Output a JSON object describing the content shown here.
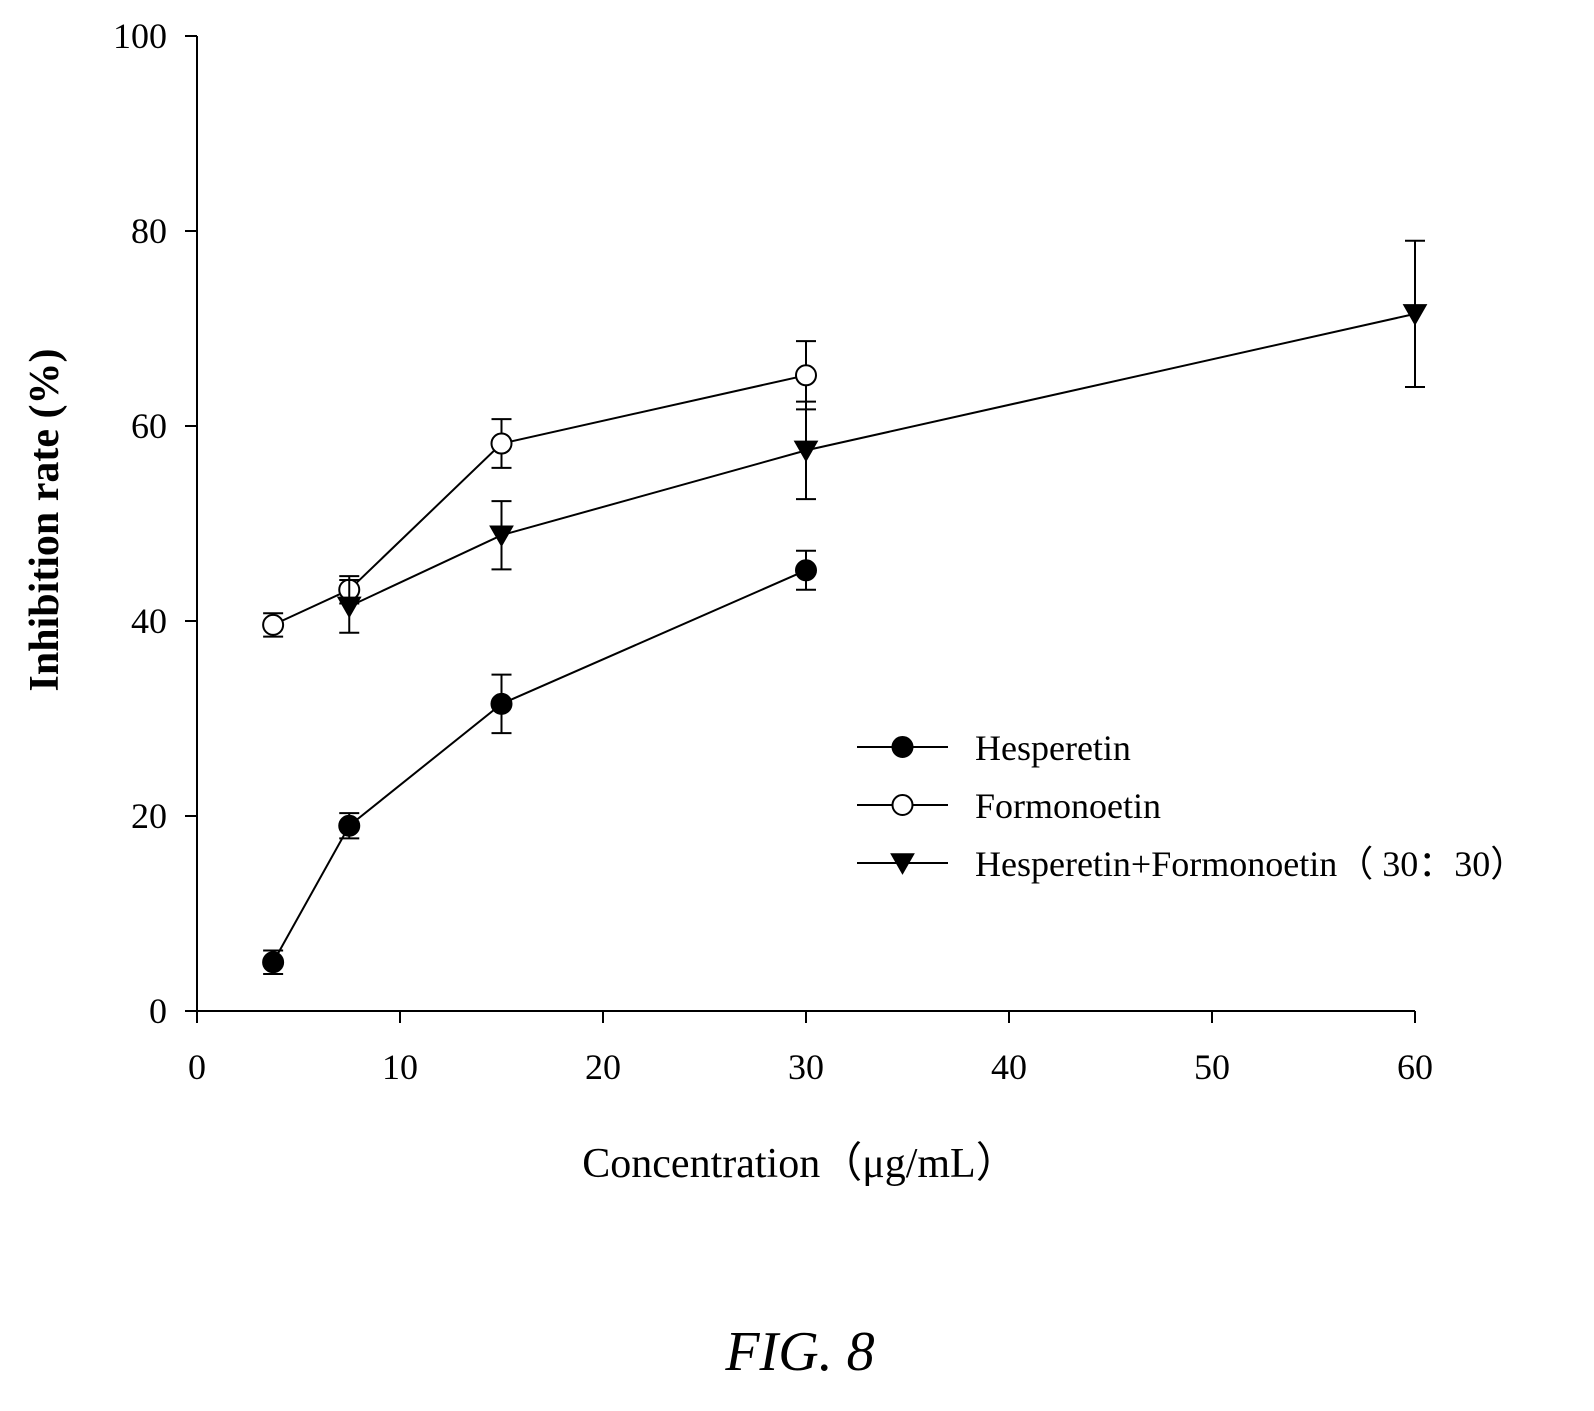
{
  "chart_data": {
    "type": "line",
    "xlabel": "Concentration（μg/mL）",
    "ylabel": "Inhibition rate (%)",
    "xlim": [
      0,
      60
    ],
    "ylim": [
      0,
      100
    ],
    "x_ticks": [
      "0",
      "10",
      "20",
      "30",
      "40",
      "50",
      "60"
    ],
    "y_ticks": [
      "0",
      "20",
      "40",
      "60",
      "80",
      "100"
    ],
    "grid": false,
    "legend_position": "center-right",
    "series": [
      {
        "name": "Hesperetin",
        "marker": "filled-circle",
        "x": [
          3.75,
          7.5,
          15,
          30
        ],
        "y": [
          5,
          19,
          31.5,
          45.2
        ],
        "err": [
          1.2,
          1.3,
          3.0,
          2.0
        ]
      },
      {
        "name": "Formonoetin",
        "marker": "open-circle",
        "x": [
          3.75,
          7.5,
          15,
          30
        ],
        "y": [
          39.6,
          43.2,
          58.2,
          65.2
        ],
        "err": [
          1.2,
          1.4,
          2.5,
          3.5
        ]
      },
      {
        "name": "Hesperetin+Formonoetin（ 30：30）",
        "marker": "filled-triangle-down",
        "x": [
          7.5,
          15,
          30,
          60
        ],
        "y": [
          41.5,
          48.8,
          57.5,
          71.5
        ],
        "err": [
          2.7,
          3.5,
          5.0,
          7.5
        ]
      }
    ]
  },
  "figure": {
    "caption": "FIG. 8"
  }
}
